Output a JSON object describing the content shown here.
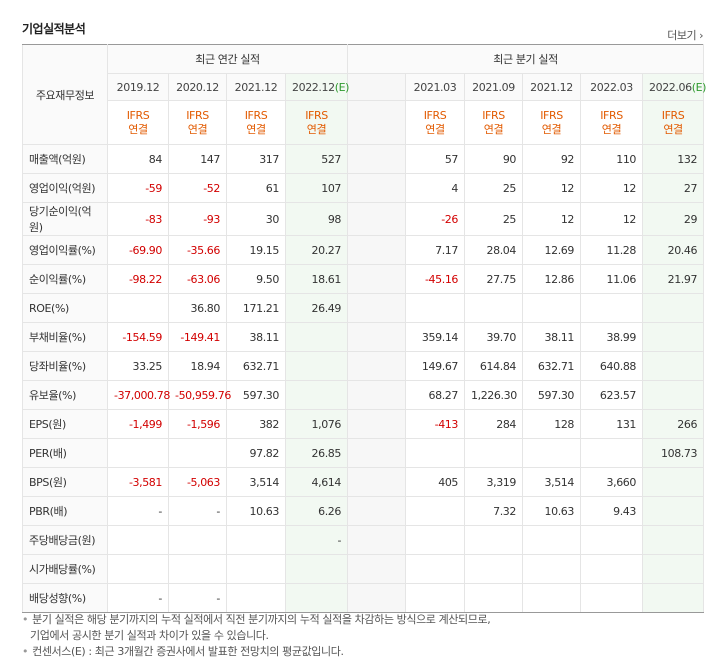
{
  "section_title": "기업실적분석",
  "more_link": "더보기",
  "corner_label": "주요재무정보",
  "group_annual": "최근 연간 실적",
  "group_quarter": "최근 분기 실적",
  "periods_annual": [
    "2019.12",
    "2020.12",
    "2021.12",
    "2022.12"
  ],
  "period_annual_est_suffix": "(E)",
  "periods_quarter": [
    "2021.03",
    "2021.09",
    "2021.12",
    "2022.03",
    "2022.06"
  ],
  "period_quarter_est_suffix": "(E)",
  "ifrs_line1": "IFRS",
  "ifrs_line2": "연결",
  "rows": [
    {
      "label": "매출액(억원)",
      "annual": [
        "84",
        "147",
        "317",
        "527"
      ],
      "quarter": [
        "57",
        "90",
        "92",
        "110",
        "132"
      ]
    },
    {
      "label": "영업이익(억원)",
      "annual": [
        "-59",
        "-52",
        "61",
        "107"
      ],
      "quarter": [
        "4",
        "25",
        "12",
        "12",
        "27"
      ]
    },
    {
      "label": "당기순이익(억원)",
      "annual": [
        "-83",
        "-93",
        "30",
        "98"
      ],
      "quarter": [
        "-26",
        "25",
        "12",
        "12",
        "29"
      ]
    },
    {
      "label": "영업이익률(%)",
      "annual": [
        "-69.90",
        "-35.66",
        "19.15",
        "20.27"
      ],
      "quarter": [
        "7.17",
        "28.04",
        "12.69",
        "11.28",
        "20.46"
      ]
    },
    {
      "label": "순이익률(%)",
      "annual": [
        "-98.22",
        "-63.06",
        "9.50",
        "18.61"
      ],
      "quarter": [
        "-45.16",
        "27.75",
        "12.86",
        "11.06",
        "21.97"
      ]
    },
    {
      "label": "ROE(%)",
      "annual": [
        "",
        "36.80",
        "171.21",
        "26.49"
      ],
      "quarter": [
        "",
        "",
        "",
        "",
        ""
      ]
    },
    {
      "label": "부채비율(%)",
      "annual": [
        "-154.59",
        "-149.41",
        "38.11",
        ""
      ],
      "quarter": [
        "359.14",
        "39.70",
        "38.11",
        "38.99",
        ""
      ]
    },
    {
      "label": "당좌비율(%)",
      "annual": [
        "33.25",
        "18.94",
        "632.71",
        ""
      ],
      "quarter": [
        "149.67",
        "614.84",
        "632.71",
        "640.88",
        ""
      ]
    },
    {
      "label": "유보율(%)",
      "annual": [
        "-37,000.78",
        "-50,959.76",
        "597.30",
        ""
      ],
      "quarter": [
        "68.27",
        "1,226.30",
        "597.30",
        "623.57",
        ""
      ]
    },
    {
      "label": "EPS(원)",
      "annual": [
        "-1,499",
        "-1,596",
        "382",
        "1,076"
      ],
      "quarter": [
        "-413",
        "284",
        "128",
        "131",
        "266"
      ]
    },
    {
      "label": "PER(배)",
      "annual": [
        "",
        "",
        "97.82",
        "26.85"
      ],
      "quarter": [
        "",
        "",
        "",
        "",
        "108.73"
      ]
    },
    {
      "label": "BPS(원)",
      "annual": [
        "-3,581",
        "-5,063",
        "3,514",
        "4,614"
      ],
      "quarter": [
        "405",
        "3,319",
        "3,514",
        "3,660",
        ""
      ]
    },
    {
      "label": "PBR(배)",
      "annual": [
        "-",
        "-",
        "10.63",
        "6.26"
      ],
      "quarter": [
        "",
        "7.32",
        "10.63",
        "9.43",
        ""
      ]
    },
    {
      "label": "주당배당금(원)",
      "annual": [
        "",
        "",
        "",
        "-"
      ],
      "quarter": [
        "",
        "",
        "",
        "",
        ""
      ]
    },
    {
      "label": "시가배당률(%)",
      "annual": [
        "",
        "",
        "",
        ""
      ],
      "quarter": [
        "",
        "",
        "",
        "",
        ""
      ]
    },
    {
      "label": "배당성향(%)",
      "annual": [
        "-",
        "-",
        "",
        ""
      ],
      "quarter": [
        "",
        "",
        "",
        "",
        ""
      ]
    }
  ],
  "notes": [
    "분기 실적은 해당 분기까지의 누적 실적에서 직전 분기까지의 누적 실적을 차감하는 방식으로 계산되므로,",
    "기업에서 공시한 분기 실적과 차이가 있을 수 있습니다.",
    "컨센서스(E) : 최근 3개월간 증권사에서 발표한 전망치의 평균값입니다."
  ]
}
